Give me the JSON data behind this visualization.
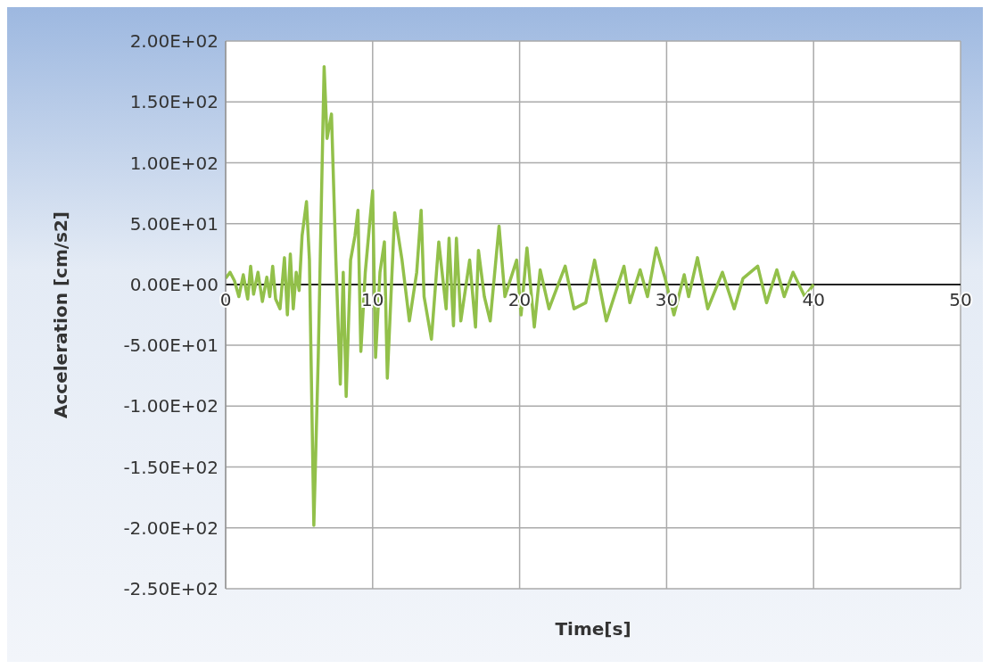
{
  "chart_data": {
    "type": "line",
    "xlabel": "Time[s]",
    "ylabel": "Acceleration [cm/s2]",
    "xlim": [
      0,
      50
    ],
    "xticks": [
      0,
      10,
      20,
      30,
      40,
      50
    ],
    "ylim": [
      -250,
      200
    ],
    "yticks": [
      {
        "value": -250,
        "label": "-2.50E+02"
      },
      {
        "value": -200,
        "label": "-2.00E+02"
      },
      {
        "value": -150,
        "label": "-1.50E+02"
      },
      {
        "value": -100,
        "label": "-1.00E+02"
      },
      {
        "value": -50,
        "label": "-5.00E+01"
      },
      {
        "value": 0,
        "label": "0.00E+00"
      },
      {
        "value": 50,
        "label": "5.00E+01"
      },
      {
        "value": 100,
        "label": "1.00E+02"
      },
      {
        "value": 150,
        "label": "1.50E+02"
      },
      {
        "value": 200,
        "label": "2.00E+02"
      }
    ],
    "grid": true,
    "marker": "none",
    "line_style": "solid",
    "series": [
      {
        "color": "#92c04a",
        "x": [
          0,
          0.3,
          0.6,
          0.9,
          1.2,
          1.5,
          1.7,
          1.9,
          2.2,
          2.5,
          2.8,
          3.0,
          3.2,
          3.4,
          3.7,
          4.0,
          4.2,
          4.4,
          4.6,
          4.8,
          5.0,
          5.2,
          5.5,
          5.7,
          6.0,
          6.3,
          6.5,
          6.7,
          6.9,
          7.2,
          7.5,
          7.8,
          8.0,
          8.2,
          8.5,
          8.8,
          9.0,
          9.2,
          9.5,
          10.0,
          10.2,
          10.5,
          10.8,
          11.0,
          11.5,
          12.0,
          12.5,
          13.0,
          13.3,
          13.5,
          14.0,
          14.5,
          15.0,
          15.2,
          15.5,
          15.7,
          16.0,
          16.6,
          17.0,
          17.2,
          17.6,
          18.0,
          18.6,
          19.0,
          19.8,
          20.1,
          20.5,
          21.0,
          21.4,
          22.0,
          23.1,
          23.7,
          24.5,
          25.1,
          25.9,
          27.1,
          27.5,
          28.2,
          28.7,
          29.3,
          29.9,
          30.5,
          31.2,
          31.5,
          32.1,
          32.8,
          33.8,
          34.6,
          35.2,
          36.2,
          36.8,
          37.5,
          38.0,
          38.6,
          39.4,
          40.0
        ],
        "values": [
          5,
          10,
          3,
          -10,
          8,
          -12,
          15,
          -8,
          10,
          -14,
          6,
          -10,
          15,
          -12,
          -20,
          22,
          -25,
          25,
          -20,
          10,
          -5,
          40,
          68,
          20,
          -198,
          -60,
          60,
          179,
          120,
          140,
          20,
          -82,
          10,
          -92,
          20,
          40,
          61,
          -55,
          10,
          77,
          -60,
          10,
          35,
          -77,
          59,
          20,
          -30,
          10,
          61,
          -10,
          -45,
          35,
          -20,
          38,
          -34,
          38,
          -30,
          20,
          -35,
          28,
          -10,
          -30,
          48,
          -10,
          20,
          -25,
          30,
          -35,
          12,
          -20,
          15,
          -20,
          -15,
          20,
          -30,
          15,
          -15,
          12,
          -10,
          30,
          5,
          -25,
          8,
          -10,
          22,
          -20,
          10,
          -20,
          5,
          15,
          -15,
          12,
          -10,
          10,
          -10,
          0
        ]
      }
    ]
  }
}
